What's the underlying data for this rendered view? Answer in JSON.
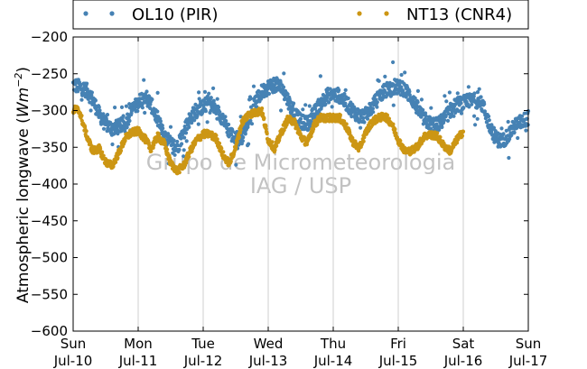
{
  "chart_data": {
    "type": "scatter",
    "ylabel_main": "Atmospheric longwave",
    "ylabel_unit_open": "(",
    "ylabel_unit_var": "Wm",
    "ylabel_unit_exp": "−2",
    "ylabel_unit_close": ")",
    "ylim": [
      -600,
      -200
    ],
    "yticks": [
      -200,
      -250,
      -300,
      -350,
      -400,
      -450,
      -500,
      -550,
      -600
    ],
    "xlim": [
      0,
      7
    ],
    "xticks": [
      {
        "pos": 0,
        "day": "Sun",
        "date": "Jul-10"
      },
      {
        "pos": 1,
        "day": "Mon",
        "date": "Jul-11"
      },
      {
        "pos": 2,
        "day": "Tue",
        "date": "Jul-12"
      },
      {
        "pos": 3,
        "day": "Wed",
        "date": "Jul-13"
      },
      {
        "pos": 4,
        "day": "Thu",
        "date": "Jul-14"
      },
      {
        "pos": 5,
        "day": "Fri",
        "date": "Jul-15"
      },
      {
        "pos": 6,
        "day": "Sat",
        "date": "Jul-16"
      },
      {
        "pos": 7,
        "day": "Sun",
        "date": "Jul-17"
      }
    ],
    "grid": "vertical",
    "legend_position": "top",
    "watermark": [
      "Grupo de Micrometeorologia",
      "IAG / USP"
    ],
    "series": [
      {
        "name": "OL10 (PIR)",
        "color": "#4682b4",
        "scatter": 10,
        "x": [
          0.0,
          0.1,
          0.2,
          0.3,
          0.4,
          0.5,
          0.6,
          0.7,
          0.8,
          0.9,
          1.0,
          1.1,
          1.2,
          1.3,
          1.4,
          1.5,
          1.6,
          1.7,
          1.8,
          1.9,
          2.0,
          2.1,
          2.2,
          2.3,
          2.4,
          2.5,
          2.6,
          2.7,
          2.8,
          2.9,
          3.0,
          3.1,
          3.2,
          3.3,
          3.4,
          3.5,
          3.6,
          3.7,
          3.8,
          3.9,
          4.0,
          4.1,
          4.2,
          4.3,
          4.4,
          4.5,
          4.6,
          4.7,
          4.8,
          4.9,
          5.0,
          5.1,
          5.2,
          5.3,
          5.4,
          5.5,
          5.6,
          5.7,
          5.8,
          5.9,
          6.0,
          6.1,
          6.2,
          6.3,
          6.4,
          6.5,
          6.6,
          6.7,
          6.8,
          6.9,
          7.0
        ],
        "y": [
          -265,
          -268,
          -272,
          -285,
          -305,
          -318,
          -325,
          -322,
          -318,
          -300,
          -290,
          -278,
          -292,
          -312,
          -335,
          -345,
          -350,
          -330,
          -310,
          -300,
          -295,
          -288,
          -300,
          -310,
          -328,
          -340,
          -335,
          -310,
          -290,
          -275,
          -268,
          -265,
          -268,
          -285,
          -305,
          -315,
          -318,
          -305,
          -290,
          -280,
          -278,
          -280,
          -290,
          -300,
          -308,
          -306,
          -295,
          -282,
          -272,
          -270,
          -268,
          -272,
          -282,
          -298,
          -312,
          -318,
          -320,
          -312,
          -300,
          -292,
          -290,
          -287,
          -286,
          -293,
          -318,
          -338,
          -342,
          -332,
          -320,
          -315,
          -310
        ]
      },
      {
        "name": "NT13 (CNR4)",
        "color": "#cc9614",
        "scatter": 5,
        "x": [
          0.0,
          0.05,
          0.1,
          0.2,
          0.3,
          0.4,
          0.5,
          0.6,
          0.7,
          0.8,
          0.9,
          1.0,
          1.1,
          1.2,
          1.3,
          1.4,
          1.5,
          1.6,
          1.7,
          1.8,
          1.9,
          2.0,
          2.1,
          2.2,
          2.3,
          2.4,
          2.5,
          2.6,
          2.7,
          2.8,
          2.9,
          3.0,
          3.1,
          3.2,
          3.3,
          3.4,
          3.5,
          3.6,
          3.7,
          3.8,
          3.9,
          4.0,
          4.1,
          4.2,
          4.3,
          4.4,
          4.5,
          4.6,
          4.7,
          4.8,
          4.9,
          5.0,
          5.1,
          5.2,
          5.3,
          5.4,
          5.5,
          5.6,
          5.7,
          5.8,
          5.9,
          6.0
        ],
        "y": [
          -300,
          -298,
          -302,
          -332,
          -355,
          -352,
          -370,
          -375,
          -358,
          -338,
          -330,
          -328,
          -338,
          -352,
          -335,
          -345,
          -372,
          -382,
          -375,
          -355,
          -340,
          -332,
          -332,
          -338,
          -360,
          -372,
          -350,
          -315,
          -305,
          -303,
          -300,
          -340,
          -352,
          -330,
          -312,
          -315,
          -335,
          -345,
          -320,
          -310,
          -310,
          -310,
          -310,
          -322,
          -342,
          -352,
          -330,
          -315,
          -310,
          -308,
          -318,
          -340,
          -355,
          -355,
          -348,
          -335,
          -333,
          -335,
          -348,
          -355,
          -340,
          -328
        ]
      }
    ]
  }
}
